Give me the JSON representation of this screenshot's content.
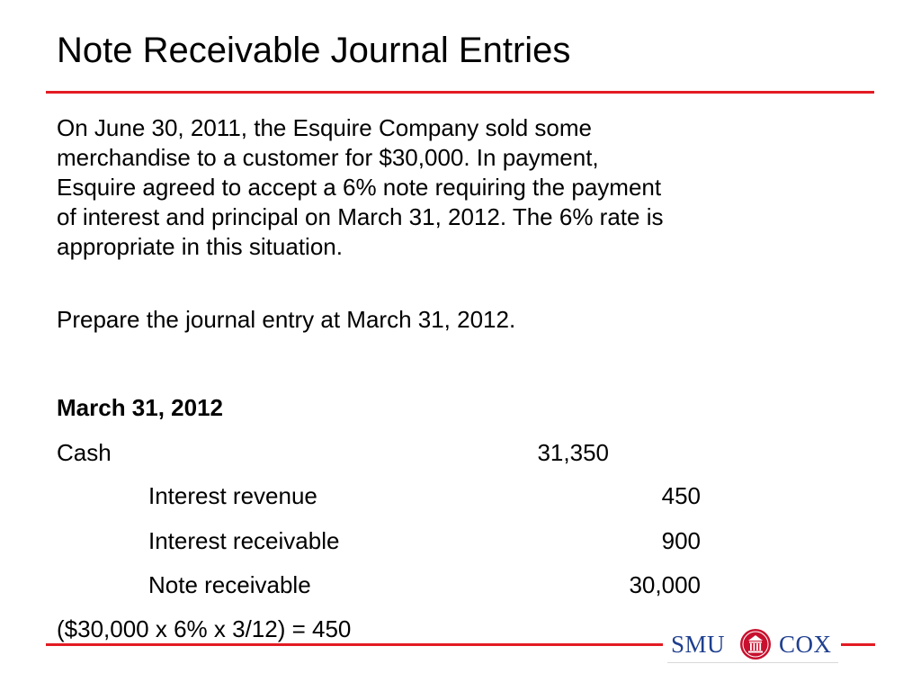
{
  "slide": {
    "title": "Note Receivable Journal Entries",
    "paragraphs": [
      {
        "lines": [
          "On June 30, 2011, the Esquire Company sold some",
          "merchandise to a customer for $30,000. In payment,",
          "Esquire agreed to accept a 6% note requiring the payment",
          "of interest and principal on March 31, 2012. The 6% rate is",
          "appropriate in this situation."
        ]
      },
      {
        "lines": [
          "Prepare the journal entry at March 31, 2012."
        ]
      }
    ],
    "entry": {
      "date": "March 31, 2012",
      "rows": [
        {
          "account": "Cash",
          "debit": "31,350",
          "credit": ""
        },
        {
          "account": "Interest revenue",
          "debit": "",
          "credit": "450"
        },
        {
          "account": "Interest receivable",
          "debit": "",
          "credit": "900"
        },
        {
          "account": "Note receivable",
          "debit": "",
          "credit": "30,000"
        }
      ]
    },
    "calculation": "($30,000 x 6% x 3/12) = 450"
  },
  "logo": {
    "left_text": "SMU",
    "right_text": "COX",
    "text_color": "#1f3f8f",
    "seal_color": "#c8102e"
  },
  "colors": {
    "accent_rule": "#e31b23"
  }
}
